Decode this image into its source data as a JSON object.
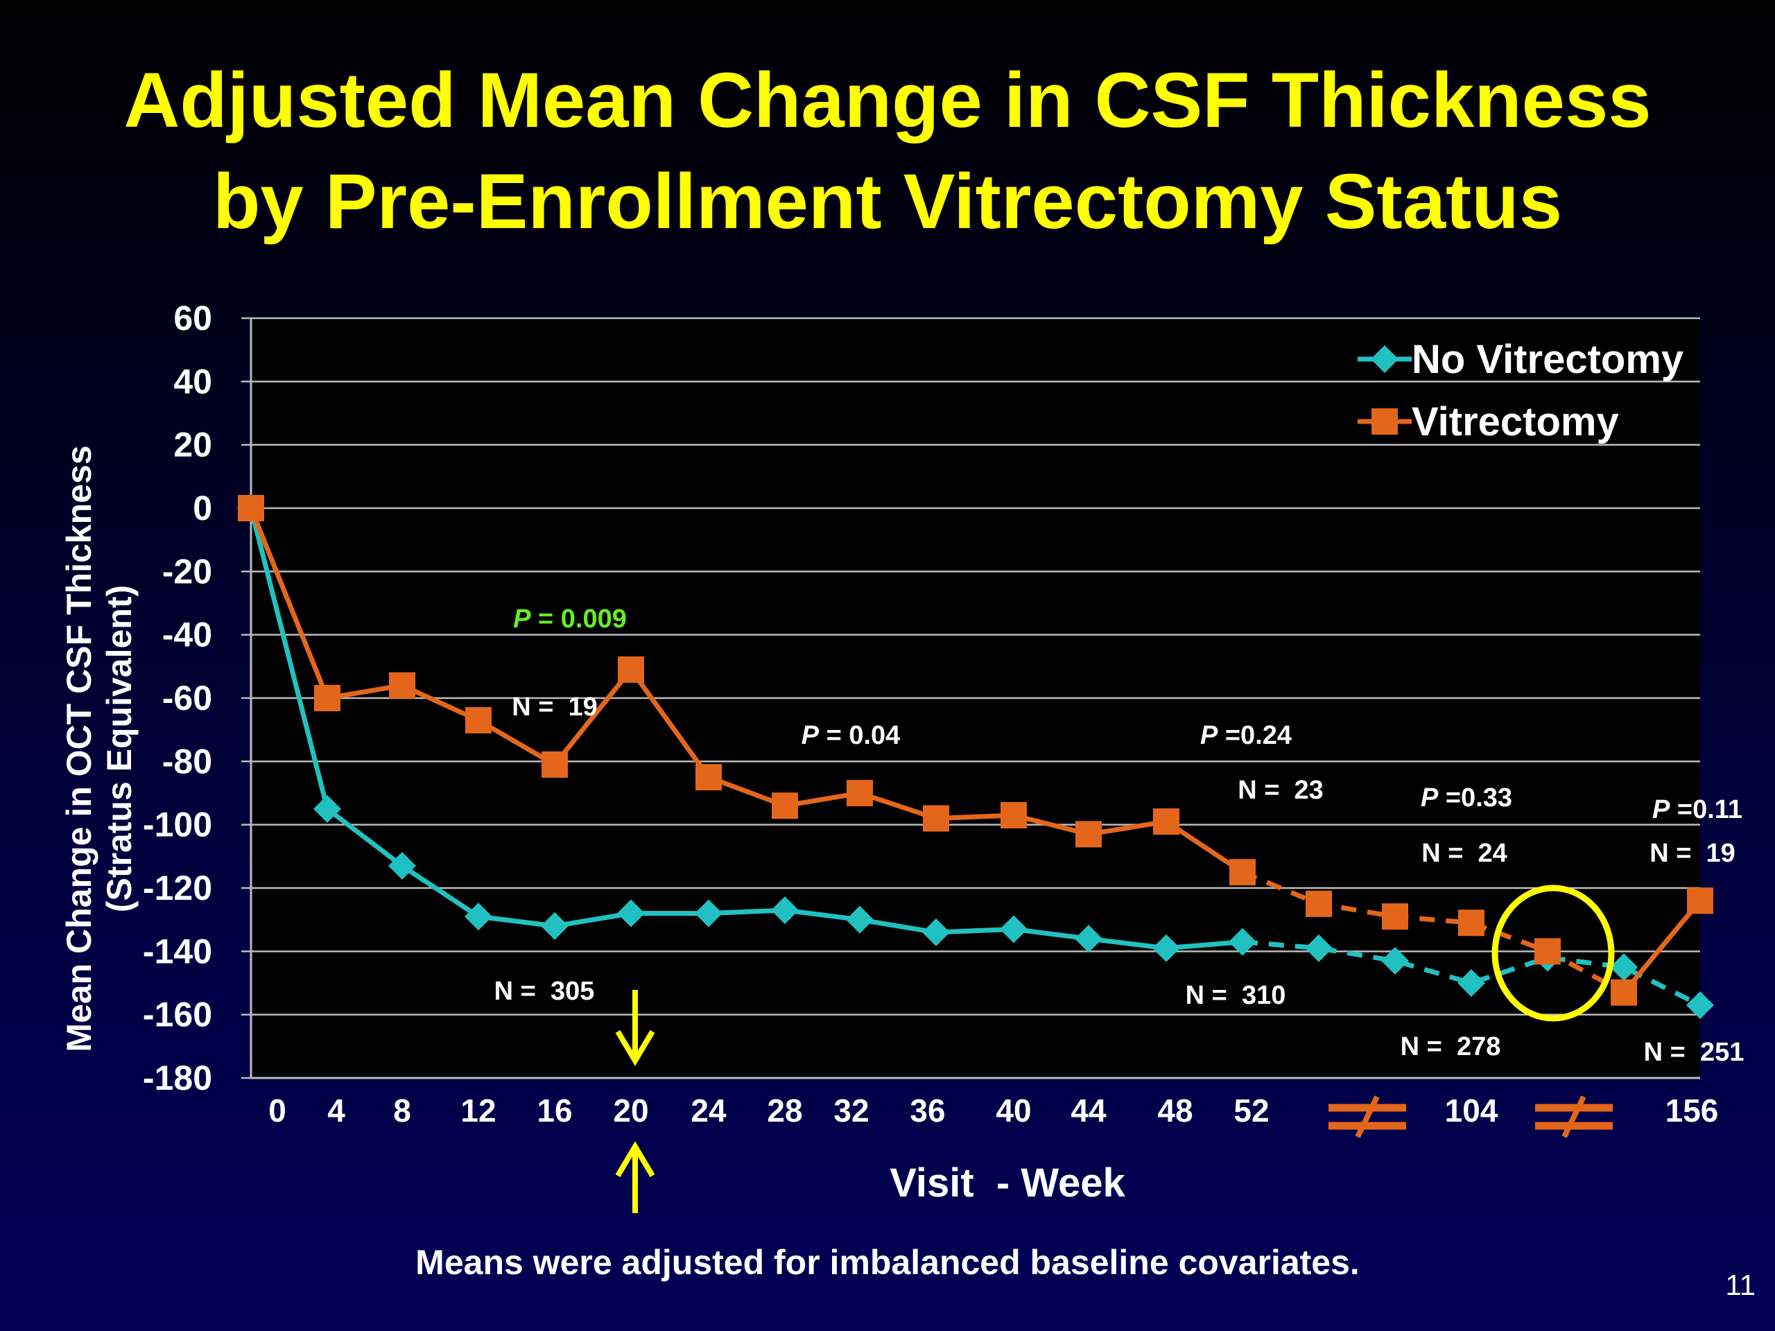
{
  "slide": {
    "title_line1": "Adjusted Mean Change in CSF Thickness",
    "title_line2": "by Pre-Enrollment Vitrectomy Status",
    "footnote": "Means were adjusted for imbalanced baseline covariates.",
    "page_number": "11"
  },
  "colors": {
    "title": "#ffff00",
    "no_vitrectomy": "#21c1c1",
    "vitrectomy": "#e4661b",
    "significant_p": "#66ee22",
    "highlight_circle": "#ffff00",
    "break_marks": "#e4661b"
  },
  "chart_data": {
    "type": "line",
    "ylabel_line1": "Mean Change in OCT CSF Thickness",
    "ylabel_line2": "(Stratus Equivalent)",
    "xlabel": "Visit  - Week",
    "ylim": [
      -180,
      60
    ],
    "yticks": [
      60,
      40,
      20,
      0,
      -20,
      -40,
      -60,
      -80,
      -100,
      -120,
      -140,
      -160,
      -180
    ],
    "grid": true,
    "legend_position": "top-right",
    "categories": [
      "0",
      "4",
      "8",
      "12",
      "16",
      "20",
      "24",
      "28",
      "32",
      "36",
      "40",
      "44",
      "48",
      "52",
      "",
      "",
      "104",
      "",
      "",
      "156"
    ],
    "x_tick_labels": [
      "0",
      "4",
      "8",
      "12",
      "16",
      "20",
      "24",
      "28",
      "32",
      "36",
      "40",
      "44",
      "48",
      "52",
      "104",
      "156"
    ],
    "axis_breaks": [
      "between 52 and 104",
      "between 104 and 156"
    ],
    "series": [
      {
        "name": "No Vitrectomy",
        "marker": "diamond",
        "values": [
          0,
          -95,
          -113,
          -129,
          -132,
          -128,
          -128,
          -127,
          -130,
          -134,
          -133,
          -136,
          -139,
          -137,
          -139,
          -143,
          -150,
          -142,
          -145,
          -157
        ],
        "dashed_from_index": 13
      },
      {
        "name": "Vitrectomy",
        "marker": "square",
        "values": [
          0,
          -60,
          -56,
          -67,
          -81,
          -51,
          -85,
          -94,
          -90,
          -98,
          -97,
          -103,
          -99,
          -115,
          -125,
          -129,
          -131,
          -140,
          -153,
          -124
        ],
        "dashed_from_index": 13,
        "solid_last_segment": true
      }
    ],
    "annotations": [
      {
        "label_italic": "P",
        "label_rest": " = 0.009",
        "significant": true
      },
      {
        "label_italic": "P",
        "label_rest": " = 0.04",
        "significant": false
      },
      {
        "label_italic": "P",
        "label_rest": " =0.24",
        "significant": false
      },
      {
        "label_italic": "P",
        "label_rest": " =0.33",
        "significant": false
      },
      {
        "label_italic": "P",
        "label_rest": " =0.11",
        "significant": false
      }
    ],
    "n_labels": [
      {
        "text": "N =  19"
      },
      {
        "text": "N =  305"
      },
      {
        "text": "N =  23"
      },
      {
        "text": "N =  310"
      },
      {
        "text": "N =  24"
      },
      {
        "text": "N =  278"
      },
      {
        "text": "N =  19"
      },
      {
        "text": "N =  251"
      }
    ],
    "markers": {
      "week20_arrows": "up and down yellow arrows at week 20",
      "highlight": "yellow circle around crossover point",
      "break_symbol": "≠"
    }
  }
}
